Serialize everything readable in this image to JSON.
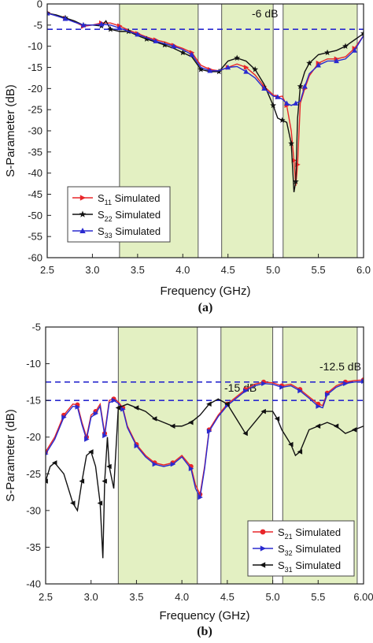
{
  "chart_data": [
    {
      "panel_label": "(a)",
      "type": "line",
      "xlabel": "Frequency (GHz)",
      "ylabel": "S-Parameter (dB)",
      "xlim": [
        2.5,
        6.0
      ],
      "ylim": [
        -60,
        0
      ],
      "xticks": [
        "2.5",
        "3.0",
        "3.5",
        "4.0",
        "4.5",
        "5.0",
        "5.5",
        "6.0"
      ],
      "yticks": [
        "0",
        "-5",
        "-10",
        "-15",
        "-20",
        "-25",
        "-30",
        "-35",
        "-40",
        "-45",
        "-50",
        "-55",
        "-60"
      ],
      "shaded_bands": [
        [
          3.3,
          4.17
        ],
        [
          4.43,
          5.0
        ],
        [
          5.11,
          5.93
        ]
      ],
      "reference_lines": [
        {
          "y": -6,
          "label": "-6 dB",
          "color": "#2a2acf"
        }
      ],
      "legend": {
        "position": "bottom-left",
        "entries": [
          {
            "sym": "S",
            "sub": "11",
            "text": " Simulated"
          },
          {
            "sym": "S",
            "sub": "22",
            "text": " Simulated"
          },
          {
            "sym": "S",
            "sub": "33",
            "text": " Simulated"
          }
        ]
      },
      "series": [
        {
          "name": "S11 Simulated",
          "color": "#e8262a",
          "marker": "triangle-right",
          "x": [
            2.5,
            2.6,
            2.7,
            2.8,
            2.9,
            3.0,
            3.1,
            3.2,
            3.3,
            3.4,
            3.5,
            3.6,
            3.7,
            3.8,
            3.9,
            4.0,
            4.1,
            4.2,
            4.3,
            4.4,
            4.5,
            4.6,
            4.7,
            4.8,
            4.9,
            5.0,
            5.05,
            5.1,
            5.15,
            5.2,
            5.23,
            5.25,
            5.27,
            5.3,
            5.35,
            5.4,
            5.5,
            5.6,
            5.7,
            5.8,
            5.9,
            6.0
          ],
          "y": [
            -2.0,
            -2.8,
            -3.4,
            -4.2,
            -5.3,
            -5.0,
            -4.5,
            -4.5,
            -5.2,
            -6.2,
            -7.0,
            -7.8,
            -8.5,
            -9.0,
            -9.8,
            -10.5,
            -11.5,
            -14.5,
            -15.5,
            -15.8,
            -15.0,
            -14.2,
            -15.0,
            -16.8,
            -19.5,
            -21.5,
            -22.0,
            -21.8,
            -24.0,
            -30.0,
            -37.0,
            -43.0,
            -38.0,
            -23.5,
            -20.0,
            -17.0,
            -14.0,
            -13.0,
            -13.0,
            -12.5,
            -10.5,
            -7.5
          ]
        },
        {
          "name": "S22 Simulated",
          "color": "#111111",
          "marker": "star",
          "x": [
            2.5,
            2.6,
            2.7,
            2.8,
            2.9,
            3.0,
            3.1,
            3.15,
            3.2,
            3.3,
            3.4,
            3.5,
            3.6,
            3.7,
            3.8,
            3.9,
            4.0,
            4.1,
            4.2,
            4.3,
            4.4,
            4.5,
            4.6,
            4.7,
            4.8,
            4.9,
            5.0,
            5.05,
            5.1,
            5.15,
            5.2,
            5.23,
            5.25,
            5.27,
            5.3,
            5.35,
            5.4,
            5.5,
            5.6,
            5.7,
            5.8,
            5.9,
            6.0
          ],
          "y": [
            -2.2,
            -2.6,
            -3.3,
            -4.0,
            -5.0,
            -5.0,
            -5.2,
            -4.0,
            -6.0,
            -6.5,
            -6.5,
            -7.5,
            -8.3,
            -9.0,
            -9.7,
            -10.5,
            -11.5,
            -12.5,
            -15.5,
            -16.0,
            -16.0,
            -13.5,
            -12.8,
            -13.5,
            -15.5,
            -19.0,
            -24.0,
            -27.0,
            -27.5,
            -28.0,
            -33.0,
            -44.5,
            -42.0,
            -27.0,
            -19.5,
            -16.0,
            -14.0,
            -12.0,
            -11.5,
            -11.0,
            -10.0,
            -8.5,
            -7.0
          ]
        },
        {
          "name": "S33 Simulated",
          "color": "#2a2acf",
          "marker": "triangle-up",
          "x": [
            2.5,
            2.6,
            2.7,
            2.8,
            2.9,
            3.0,
            3.1,
            3.2,
            3.3,
            3.4,
            3.5,
            3.6,
            3.7,
            3.8,
            3.9,
            4.0,
            4.1,
            4.2,
            4.3,
            4.4,
            4.5,
            4.6,
            4.7,
            4.8,
            4.9,
            5.0,
            5.05,
            5.1,
            5.15,
            5.2,
            5.25,
            5.3,
            5.35,
            5.4,
            5.5,
            5.6,
            5.7,
            5.8,
            5.9,
            6.0
          ],
          "y": [
            -2.2,
            -2.8,
            -3.5,
            -4.3,
            -5.0,
            -5.0,
            -4.8,
            -5.0,
            -5.7,
            -6.5,
            -7.2,
            -8.0,
            -8.8,
            -9.4,
            -10.0,
            -10.8,
            -12.0,
            -15.0,
            -15.8,
            -15.8,
            -15.0,
            -14.8,
            -16.0,
            -17.5,
            -20.0,
            -21.8,
            -22.0,
            -22.5,
            -23.5,
            -24.0,
            -23.5,
            -23.0,
            -19.5,
            -16.5,
            -14.5,
            -13.5,
            -13.5,
            -13.0,
            -11.0,
            -7.5
          ]
        }
      ]
    },
    {
      "panel_label": "(b)",
      "type": "line",
      "xlabel": "Frequency (GHz)",
      "ylabel": "S-Parameter (dB)",
      "xlim": [
        2.5,
        6.0
      ],
      "ylim": [
        -40,
        -5
      ],
      "xticks": [
        "2.5",
        "3.0",
        "3.5",
        "4.0",
        "4.5",
        "5.0",
        "5.5",
        "6.00"
      ],
      "yticks": [
        "-5",
        "-10",
        "-15",
        "-20",
        "-25",
        "-30",
        "-35",
        "-40"
      ],
      "shaded_bands": [
        [
          3.3,
          4.17
        ],
        [
          4.43,
          5.0
        ],
        [
          5.11,
          5.93
        ]
      ],
      "reference_lines": [
        {
          "y": -12.5,
          "label": "-12.5 dB",
          "color": "#2a2acf"
        },
        {
          "y": -15,
          "label": "-15 dB",
          "color": "#2a2acf"
        }
      ],
      "legend": {
        "position": "bottom-right",
        "entries": [
          {
            "sym": "S",
            "sub": "21",
            "text": " Simulated"
          },
          {
            "sym": "S",
            "sub": "32",
            "text": " Simulated"
          },
          {
            "sym": "S",
            "sub": "31",
            "text": " Simulated"
          }
        ]
      },
      "series": [
        {
          "name": "S21 Simulated",
          "color": "#e8262a",
          "marker": "circle",
          "x": [
            2.5,
            2.6,
            2.7,
            2.8,
            2.85,
            2.9,
            2.95,
            3.0,
            3.05,
            3.1,
            3.15,
            3.2,
            3.25,
            3.3,
            3.35,
            3.4,
            3.5,
            3.6,
            3.7,
            3.8,
            3.9,
            4.0,
            4.1,
            4.15,
            4.2,
            4.25,
            4.3,
            4.4,
            4.5,
            4.6,
            4.7,
            4.8,
            4.9,
            5.0,
            5.1,
            5.2,
            5.3,
            5.4,
            5.5,
            5.55,
            5.6,
            5.7,
            5.8,
            5.9,
            6.0
          ],
          "y": [
            -22.0,
            -20.0,
            -17.0,
            -15.5,
            -15.6,
            -18.0,
            -20.0,
            -17.0,
            -16.5,
            -15.5,
            -19.5,
            -15.0,
            -14.8,
            -15.2,
            -16.0,
            -18.5,
            -21.0,
            -22.5,
            -23.5,
            -23.8,
            -23.5,
            -22.5,
            -24.0,
            -26.5,
            -27.8,
            -24.0,
            -19.0,
            -17.0,
            -15.5,
            -14.5,
            -13.5,
            -12.8,
            -12.5,
            -12.6,
            -13.0,
            -12.8,
            -13.5,
            -14.5,
            -15.5,
            -15.7,
            -14.0,
            -13.0,
            -12.5,
            -12.3,
            -12.2
          ]
        },
        {
          "name": "S32 Simulated",
          "color": "#2a2acf",
          "marker": "triangle-right",
          "x": [
            2.5,
            2.6,
            2.7,
            2.8,
            2.85,
            2.9,
            2.95,
            3.0,
            3.05,
            3.1,
            3.15,
            3.2,
            3.25,
            3.3,
            3.35,
            3.4,
            3.5,
            3.6,
            3.7,
            3.8,
            3.9,
            4.0,
            4.1,
            4.15,
            4.2,
            4.25,
            4.3,
            4.4,
            4.5,
            4.6,
            4.7,
            4.8,
            4.9,
            5.0,
            5.1,
            5.2,
            5.3,
            5.4,
            5.5,
            5.55,
            5.6,
            5.7,
            5.8,
            5.9,
            6.0
          ],
          "y": [
            -22.3,
            -20.3,
            -17.3,
            -15.8,
            -15.9,
            -18.3,
            -20.3,
            -17.3,
            -16.8,
            -15.8,
            -19.8,
            -15.3,
            -15.0,
            -15.4,
            -16.2,
            -18.7,
            -21.2,
            -22.7,
            -23.7,
            -24.0,
            -23.7,
            -22.7,
            -24.3,
            -27.0,
            -28.2,
            -24.3,
            -19.2,
            -17.2,
            -15.7,
            -14.7,
            -13.7,
            -13.0,
            -12.7,
            -12.8,
            -13.2,
            -13.0,
            -13.7,
            -14.7,
            -15.8,
            -16.0,
            -14.2,
            -13.2,
            -12.7,
            -12.5,
            -12.4
          ]
        },
        {
          "name": "S31 Simulated",
          "color": "#111111",
          "marker": "triangle-left",
          "x": [
            2.5,
            2.55,
            2.6,
            2.7,
            2.8,
            2.85,
            2.9,
            2.95,
            3.0,
            3.05,
            3.1,
            3.13,
            3.15,
            3.18,
            3.2,
            3.25,
            3.3,
            3.4,
            3.5,
            3.6,
            3.7,
            3.8,
            3.9,
            4.0,
            4.1,
            4.2,
            4.3,
            4.4,
            4.5,
            4.6,
            4.7,
            4.8,
            4.9,
            5.0,
            5.05,
            5.1,
            5.2,
            5.25,
            5.3,
            5.4,
            5.5,
            5.6,
            5.7,
            5.8,
            5.9,
            6.0
          ],
          "y": [
            -26.0,
            -24.0,
            -23.5,
            -25.0,
            -29.0,
            -30.0,
            -26.0,
            -22.5,
            -22.0,
            -24.0,
            -29.0,
            -36.5,
            -26.0,
            -20.0,
            -24.0,
            -27.0,
            -16.0,
            -15.5,
            -16.0,
            -16.5,
            -17.5,
            -18.0,
            -18.5,
            -18.5,
            -18.0,
            -17.0,
            -15.5,
            -14.8,
            -15.5,
            -17.5,
            -19.5,
            -18.0,
            -16.5,
            -16.5,
            -17.5,
            -19.0,
            -21.0,
            -22.5,
            -22.0,
            -19.0,
            -18.5,
            -18.0,
            -18.5,
            -19.5,
            -19.0,
            -18.5
          ]
        }
      ]
    }
  ]
}
